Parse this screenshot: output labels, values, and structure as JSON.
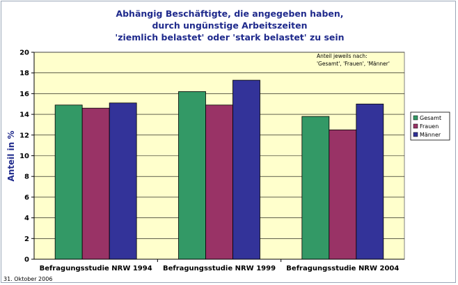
{
  "chart_data": {
    "type": "bar",
    "title_lines": [
      "Abhängig Beschäftigte, die angegeben haben,",
      "durch ungünstige Arbeitszeiten",
      "'ziemlich belastet' oder 'stark belastet' zu sein"
    ],
    "ylabel": "Anteil in %",
    "xlabel": "",
    "ylim": [
      0,
      20
    ],
    "yticks": [
      "0",
      "2",
      "4",
      "6",
      "8",
      "10",
      "12",
      "14",
      "16",
      "18",
      "20"
    ],
    "categories": [
      "Befragungsstudie NRW 1994",
      "Befragungsstudie NRW 1999",
      "Befragungsstudie NRW 2004"
    ],
    "series": [
      {
        "name": "Gesamt",
        "values": [
          14.9,
          16.2,
          13.8
        ]
      },
      {
        "name": "Frauen",
        "values": [
          14.6,
          14.9,
          12.5
        ]
      },
      {
        "name": "Männer",
        "values": [
          15.1,
          17.3,
          15.0
        ]
      }
    ],
    "note_lines": [
      "Anteil jeweils nach:",
      "'Gesamt', 'Frauen', 'Männer'"
    ],
    "legend_position": "right",
    "grid": true,
    "colors": {
      "plot_background": "#ffffcc",
      "grid": "#000000",
      "series": [
        "#339966",
        "#993366",
        "#333399"
      ],
      "title": "#1f2a8c"
    }
  },
  "footer": {
    "date": "31. Oktober 2006"
  }
}
